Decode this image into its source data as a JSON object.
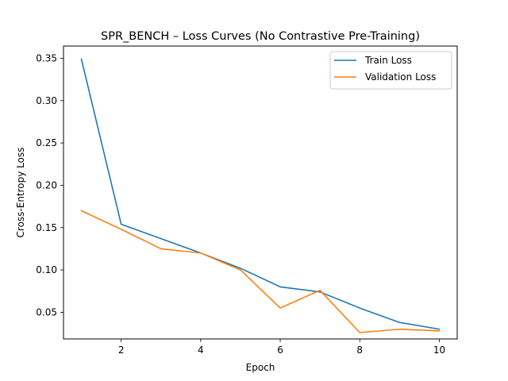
{
  "chart_data": {
    "type": "line",
    "title": "SPR_BENCH – Loss Curves (No Contrastive Pre-Training)",
    "xlabel": "Epoch",
    "ylabel": "Cross-Entropy Loss",
    "x": [
      1,
      2,
      3,
      4,
      5,
      6,
      7,
      8,
      9,
      10
    ],
    "xlim": [
      0.55,
      10.45
    ],
    "ylim": [
      0.0185,
      0.3645
    ],
    "xticks": [
      2,
      4,
      6,
      8,
      10
    ],
    "xtick_labels": [
      "2",
      "4",
      "6",
      "8",
      "10"
    ],
    "yticks": [
      0.05,
      0.1,
      0.15,
      0.2,
      0.25,
      0.3,
      0.35
    ],
    "ytick_labels": [
      "0.05",
      "0.10",
      "0.15",
      "0.20",
      "0.25",
      "0.30",
      "0.35"
    ],
    "grid": false,
    "legend_position": "top-right",
    "series": [
      {
        "name": "Train Loss",
        "color": "#1f77b4",
        "values": [
          0.349,
          0.154,
          0.137,
          0.12,
          0.102,
          0.08,
          0.074,
          0.055,
          0.038,
          0.03
        ]
      },
      {
        "name": "Validation Loss",
        "color": "#ff7f0e",
        "values": [
          0.17,
          0.148,
          0.125,
          0.12,
          0.1,
          0.055,
          0.076,
          0.026,
          0.03,
          0.028
        ]
      }
    ]
  }
}
